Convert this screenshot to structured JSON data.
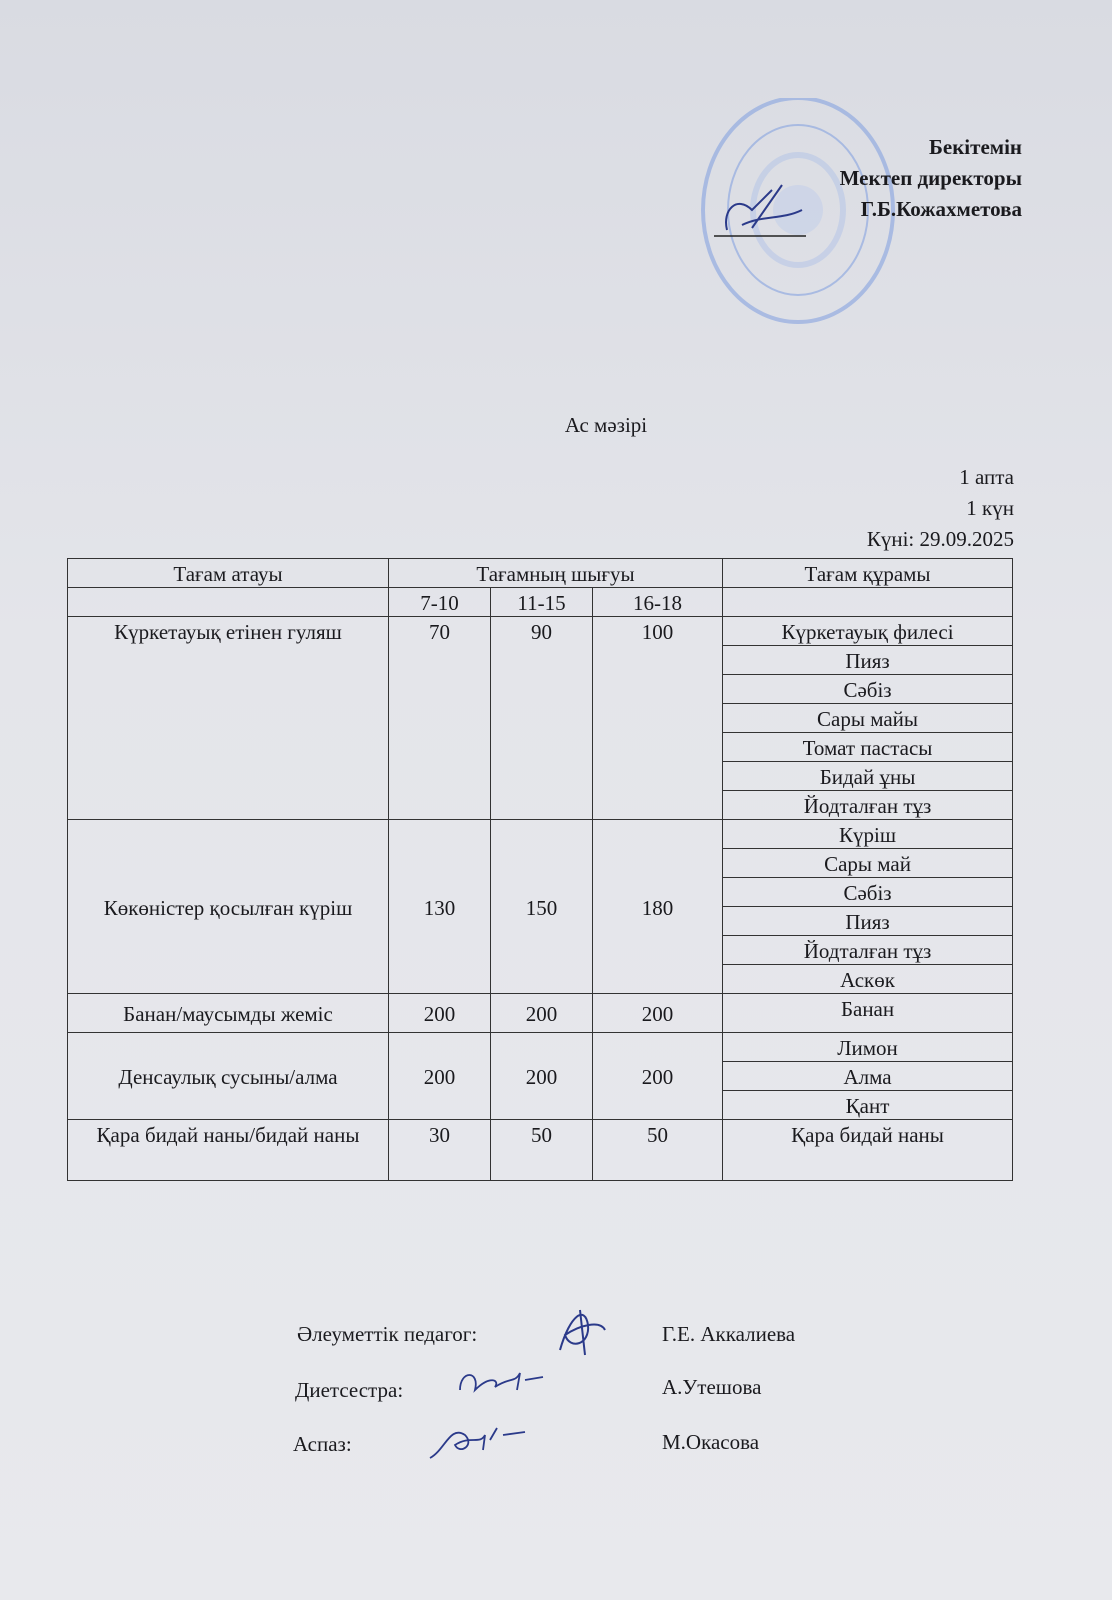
{
  "approval": {
    "line1": "Бекітемін",
    "line2": "Мектеп директоры",
    "line3": "Г.Б.Кожахметова"
  },
  "title": "Ас мәзірі",
  "meta": {
    "week": "1 апта",
    "day": "1 күн",
    "date": "Күні: 29.09.2025"
  },
  "table": {
    "headers": {
      "name": "Тағам атауы",
      "yield": "Тағамның шығуы",
      "composition": "Тағам  құрамы"
    },
    "age_groups": [
      "7-10",
      "11-15",
      "16-18"
    ],
    "rows": [
      {
        "name": "Күркетауық етінен гуляш",
        "values": [
          "70",
          "90",
          "100"
        ],
        "ingredients": [
          "Күркетауық филесі",
          "Пияз",
          "Сәбіз",
          "Сары майы",
          "Томат пастасы",
          "Бидай ұны",
          "Йодталған тұз"
        ]
      },
      {
        "name": "Көкөністер қосылған күріш",
        "values": [
          "130",
          "150",
          "180"
        ],
        "ingredients": [
          "Күріш",
          "Сары май",
          "Сәбіз",
          "Пияз",
          "Йодталған тұз",
          "Аскөк"
        ]
      },
      {
        "name": "Банан/маусымды жеміс",
        "values": [
          "200",
          "200",
          "200"
        ],
        "ingredients": [
          "Банан"
        ]
      },
      {
        "name": "Денсаулық  сусыны/алма",
        "values": [
          "200",
          "200",
          "200"
        ],
        "ingredients": [
          "Лимон",
          "Алма",
          "Қант"
        ]
      },
      {
        "name": "Қара бидай наны/бидай наны",
        "values": [
          "30",
          "50",
          "50"
        ],
        "ingredients": [
          "Қара бидай наны"
        ]
      }
    ]
  },
  "signatures": [
    {
      "role": "Әлеуметтік педагог:",
      "name": "Г.Е. Аккалиева"
    },
    {
      "role": "Диетсестра:",
      "name": "А.Утешова"
    },
    {
      "role": "Аспаз:",
      "name": "М.Окасова"
    }
  ],
  "colors": {
    "stamp": "#6f8fd6",
    "ink": "#2b3a8a"
  }
}
